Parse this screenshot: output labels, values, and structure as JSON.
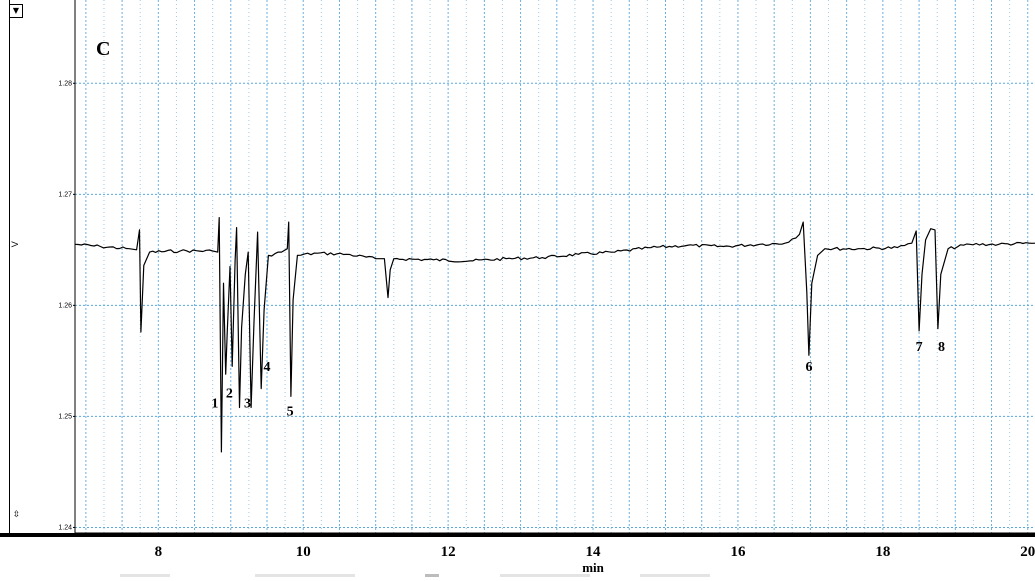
{
  "panel_label": "C",
  "controls": {
    "menu_icon": "dropdown-triangle-icon",
    "zoom_icon": "zoom-arrows-icon"
  },
  "colors": {
    "grid": "#5aa9dd",
    "trace": "#000000",
    "background": "#ffffff"
  },
  "chart_data": {
    "type": "line",
    "title": "C",
    "xlabel": "min",
    "ylabel": "V",
    "xlim": [
      6.85,
      20.1
    ],
    "ylim": [
      1.2395,
      1.2875
    ],
    "grid": true,
    "x_ticks": [
      8,
      10,
      12,
      14,
      16,
      18,
      20
    ],
    "x_tick_labels": [
      "8",
      "10",
      "12",
      "14",
      "16",
      "18",
      "20"
    ],
    "y_ticks": [
      1.24,
      1.25,
      1.26,
      1.27,
      1.28
    ],
    "y_tick_labels": [
      "1.24",
      "1.25",
      "1.26",
      "1.27",
      "1.28"
    ],
    "series": [
      {
        "values": [
          [
            6.85,
            1.2655
          ],
          [
            7.2,
            1.2653
          ],
          [
            7.6,
            1.2651
          ],
          [
            7.7,
            1.265
          ],
          [
            7.74,
            1.2668
          ],
          [
            7.76,
            1.2576
          ],
          [
            7.8,
            1.2636
          ],
          [
            7.88,
            1.2648
          ],
          [
            8.3,
            1.2649
          ],
          [
            8.75,
            1.2649
          ],
          [
            8.82,
            1.2648
          ],
          [
            8.84,
            1.2679
          ],
          [
            8.87,
            1.2468
          ],
          [
            8.9,
            1.262
          ],
          [
            8.93,
            1.2538
          ],
          [
            8.95,
            1.2575
          ],
          [
            8.99,
            1.2635
          ],
          [
            9.02,
            1.2545
          ],
          [
            9.06,
            1.264
          ],
          [
            9.08,
            1.267
          ],
          [
            9.12,
            1.2508
          ],
          [
            9.15,
            1.258
          ],
          [
            9.2,
            1.2628
          ],
          [
            9.24,
            1.2648
          ],
          [
            9.28,
            1.2508
          ],
          [
            9.32,
            1.2585
          ],
          [
            9.37,
            1.2666
          ],
          [
            9.42,
            1.2525
          ],
          [
            9.46,
            1.2596
          ],
          [
            9.52,
            1.2645
          ],
          [
            9.7,
            1.2648
          ],
          [
            9.78,
            1.2651
          ],
          [
            9.8,
            1.2675
          ],
          [
            9.83,
            1.2518
          ],
          [
            9.86,
            1.2605
          ],
          [
            9.92,
            1.2645
          ],
          [
            10.2,
            1.2647
          ],
          [
            10.6,
            1.2646
          ],
          [
            11.0,
            1.2642
          ],
          [
            11.12,
            1.2642
          ],
          [
            11.17,
            1.2607
          ],
          [
            11.2,
            1.2632
          ],
          [
            11.25,
            1.2642
          ],
          [
            11.8,
            1.2641
          ],
          [
            12.3,
            1.264
          ],
          [
            12.8,
            1.2642
          ],
          [
            13.3,
            1.2643
          ],
          [
            13.8,
            1.2646
          ],
          [
            14.3,
            1.2648
          ],
          [
            14.8,
            1.2652
          ],
          [
            15.3,
            1.2654
          ],
          [
            15.8,
            1.2653
          ],
          [
            16.3,
            1.2655
          ],
          [
            16.65,
            1.2656
          ],
          [
            16.85,
            1.2664
          ],
          [
            16.9,
            1.2675
          ],
          [
            16.95,
            1.2612
          ],
          [
            16.98,
            1.2555
          ],
          [
            17.02,
            1.262
          ],
          [
            17.1,
            1.2645
          ],
          [
            17.2,
            1.2651
          ],
          [
            17.7,
            1.2651
          ],
          [
            18.2,
            1.2652
          ],
          [
            18.4,
            1.2656
          ],
          [
            18.46,
            1.2667
          ],
          [
            18.5,
            1.2577
          ],
          [
            18.54,
            1.2628
          ],
          [
            18.59,
            1.2659
          ],
          [
            18.66,
            1.2669
          ],
          [
            18.72,
            1.2668
          ],
          [
            18.76,
            1.2579
          ],
          [
            18.8,
            1.2628
          ],
          [
            18.9,
            1.2651
          ],
          [
            19.2,
            1.2655
          ],
          [
            19.6,
            1.2655
          ],
          [
            20.1,
            1.2656
          ]
        ]
      }
    ],
    "annotations": [
      {
        "text": "1",
        "x": 8.78,
        "y": 1.2508
      },
      {
        "text": "2",
        "x": 8.98,
        "y": 1.2517
      },
      {
        "text": "3",
        "x": 9.23,
        "y": 1.2508
      },
      {
        "text": "4",
        "x": 9.5,
        "y": 1.2541
      },
      {
        "text": "5",
        "x": 9.82,
        "y": 1.2501
      },
      {
        "text": "6",
        "x": 16.98,
        "y": 1.2541
      },
      {
        "text": "7",
        "x": 18.5,
        "y": 1.2559
      },
      {
        "text": "8",
        "x": 18.81,
        "y": 1.2559
      }
    ]
  }
}
